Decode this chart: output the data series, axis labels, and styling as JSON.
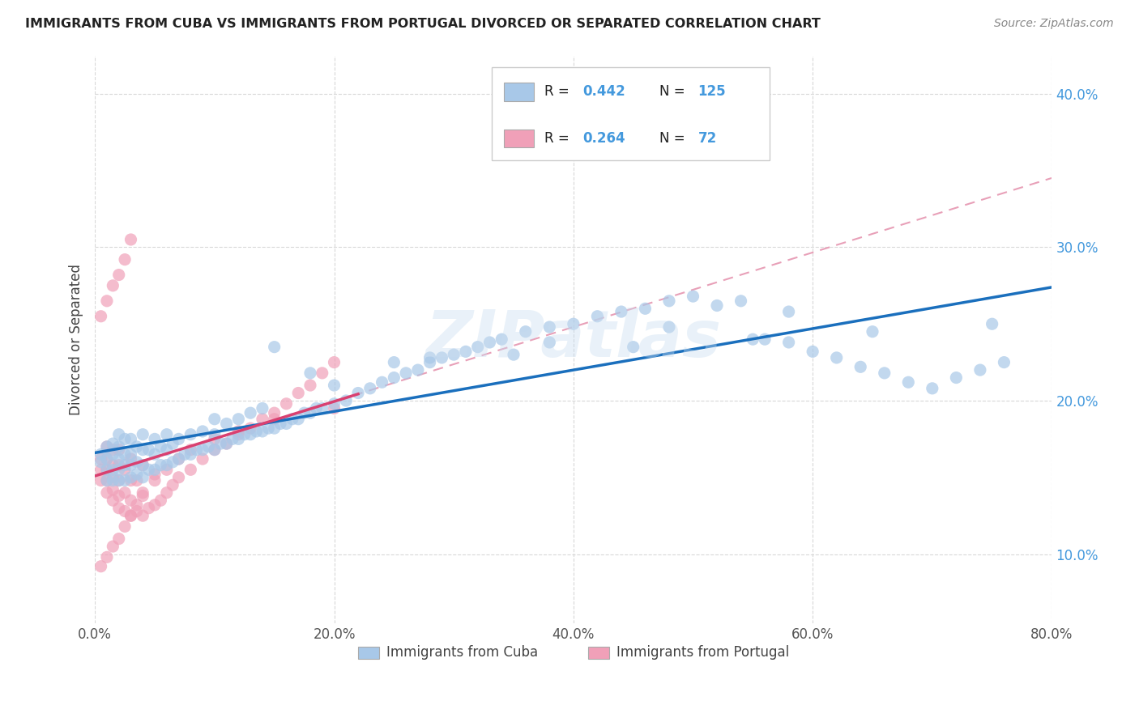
{
  "title": "IMMIGRANTS FROM CUBA VS IMMIGRANTS FROM PORTUGAL DIVORCED OR SEPARATED CORRELATION CHART",
  "source_text": "Source: ZipAtlas.com",
  "ylabel": "Divorced or Separated",
  "xmin": 0.0,
  "xmax": 0.8,
  "ymin": 0.055,
  "ymax": 0.425,
  "xtick_labels": [
    "0.0%",
    "20.0%",
    "40.0%",
    "60.0%",
    "80.0%"
  ],
  "xtick_vals": [
    0.0,
    0.2,
    0.4,
    0.6,
    0.8
  ],
  "ytick_labels": [
    "10.0%",
    "20.0%",
    "30.0%",
    "40.0%"
  ],
  "ytick_vals": [
    0.1,
    0.2,
    0.3,
    0.4
  ],
  "cuba_R": 0.442,
  "cuba_N": 125,
  "portugal_R": 0.264,
  "portugal_N": 72,
  "cuba_color": "#a8c8e8",
  "portugal_color": "#f0a0b8",
  "cuba_line_color": "#1a6fbd",
  "portugal_line_color": "#d94070",
  "dashed_line_color": "#e8a0b8",
  "watermark": "ZIPatlas",
  "legend_label_cuba": "Immigrants from Cuba",
  "legend_label_portugal": "Immigrants from Portugal",
  "cuba_scatter_x": [
    0.005,
    0.005,
    0.01,
    0.01,
    0.01,
    0.01,
    0.015,
    0.015,
    0.015,
    0.015,
    0.02,
    0.02,
    0.02,
    0.02,
    0.02,
    0.025,
    0.025,
    0.025,
    0.025,
    0.03,
    0.03,
    0.03,
    0.03,
    0.035,
    0.035,
    0.035,
    0.04,
    0.04,
    0.04,
    0.04,
    0.045,
    0.045,
    0.05,
    0.05,
    0.05,
    0.055,
    0.055,
    0.06,
    0.06,
    0.06,
    0.065,
    0.065,
    0.07,
    0.07,
    0.075,
    0.08,
    0.08,
    0.085,
    0.09,
    0.09,
    0.095,
    0.1,
    0.1,
    0.1,
    0.105,
    0.11,
    0.11,
    0.115,
    0.12,
    0.12,
    0.125,
    0.13,
    0.13,
    0.135,
    0.14,
    0.14,
    0.145,
    0.15,
    0.155,
    0.16,
    0.165,
    0.17,
    0.175,
    0.18,
    0.185,
    0.19,
    0.2,
    0.2,
    0.21,
    0.22,
    0.23,
    0.24,
    0.25,
    0.26,
    0.27,
    0.28,
    0.29,
    0.3,
    0.31,
    0.32,
    0.33,
    0.34,
    0.36,
    0.38,
    0.4,
    0.42,
    0.44,
    0.46,
    0.48,
    0.5,
    0.52,
    0.54,
    0.56,
    0.58,
    0.6,
    0.62,
    0.64,
    0.66,
    0.68,
    0.7,
    0.72,
    0.74,
    0.76,
    0.15,
    0.25,
    0.35,
    0.45,
    0.55,
    0.65,
    0.75,
    0.18,
    0.28,
    0.38,
    0.48,
    0.58
  ],
  "cuba_scatter_y": [
    0.16,
    0.165,
    0.148,
    0.155,
    0.162,
    0.17,
    0.148,
    0.155,
    0.165,
    0.172,
    0.148,
    0.155,
    0.162,
    0.17,
    0.178,
    0.148,
    0.158,
    0.165,
    0.175,
    0.15,
    0.158,
    0.165,
    0.175,
    0.152,
    0.16,
    0.17,
    0.15,
    0.158,
    0.168,
    0.178,
    0.155,
    0.168,
    0.155,
    0.165,
    0.175,
    0.158,
    0.17,
    0.158,
    0.168,
    0.178,
    0.16,
    0.172,
    0.162,
    0.175,
    0.165,
    0.165,
    0.178,
    0.168,
    0.168,
    0.18,
    0.17,
    0.168,
    0.178,
    0.188,
    0.172,
    0.172,
    0.185,
    0.175,
    0.175,
    0.188,
    0.178,
    0.178,
    0.192,
    0.18,
    0.18,
    0.195,
    0.182,
    0.182,
    0.185,
    0.185,
    0.188,
    0.188,
    0.192,
    0.192,
    0.195,
    0.195,
    0.198,
    0.21,
    0.2,
    0.205,
    0.208,
    0.212,
    0.215,
    0.218,
    0.22,
    0.225,
    0.228,
    0.23,
    0.232,
    0.235,
    0.238,
    0.24,
    0.245,
    0.248,
    0.25,
    0.255,
    0.258,
    0.26,
    0.265,
    0.268,
    0.262,
    0.265,
    0.24,
    0.238,
    0.232,
    0.228,
    0.222,
    0.218,
    0.212,
    0.208,
    0.215,
    0.22,
    0.225,
    0.235,
    0.225,
    0.23,
    0.235,
    0.24,
    0.245,
    0.25,
    0.218,
    0.228,
    0.238,
    0.248,
    0.258
  ],
  "portugal_scatter_x": [
    0.005,
    0.005,
    0.005,
    0.01,
    0.01,
    0.01,
    0.01,
    0.01,
    0.015,
    0.015,
    0.015,
    0.015,
    0.015,
    0.02,
    0.02,
    0.02,
    0.02,
    0.02,
    0.025,
    0.025,
    0.025,
    0.03,
    0.03,
    0.03,
    0.03,
    0.035,
    0.035,
    0.04,
    0.04,
    0.04,
    0.045,
    0.05,
    0.05,
    0.055,
    0.06,
    0.065,
    0.07,
    0.08,
    0.09,
    0.1,
    0.11,
    0.12,
    0.13,
    0.14,
    0.15,
    0.16,
    0.17,
    0.18,
    0.19,
    0.2,
    0.005,
    0.01,
    0.015,
    0.02,
    0.025,
    0.03,
    0.005,
    0.01,
    0.015,
    0.02,
    0.025,
    0.03,
    0.035,
    0.04,
    0.05,
    0.06,
    0.07,
    0.08,
    0.1,
    0.12,
    0.15,
    0.2
  ],
  "portugal_scatter_y": [
    0.148,
    0.155,
    0.162,
    0.14,
    0.148,
    0.155,
    0.162,
    0.17,
    0.135,
    0.142,
    0.15,
    0.158,
    0.168,
    0.13,
    0.138,
    0.148,
    0.158,
    0.168,
    0.128,
    0.14,
    0.155,
    0.125,
    0.135,
    0.148,
    0.162,
    0.128,
    0.148,
    0.125,
    0.14,
    0.158,
    0.13,
    0.132,
    0.152,
    0.135,
    0.14,
    0.145,
    0.15,
    0.155,
    0.162,
    0.168,
    0.172,
    0.178,
    0.182,
    0.188,
    0.192,
    0.198,
    0.205,
    0.21,
    0.218,
    0.225,
    0.255,
    0.265,
    0.275,
    0.282,
    0.292,
    0.305,
    0.092,
    0.098,
    0.105,
    0.11,
    0.118,
    0.125,
    0.132,
    0.138,
    0.148,
    0.155,
    0.162,
    0.168,
    0.175,
    0.18,
    0.188,
    0.195
  ]
}
